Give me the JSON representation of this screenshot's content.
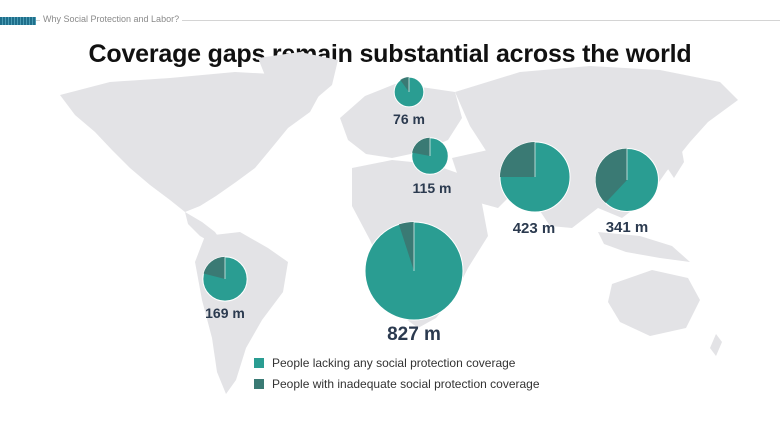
{
  "header": {
    "kicker": "Why Social Protection and Labor?"
  },
  "chart_data": {
    "type": "pie",
    "title": "Coverage gaps remain substantial across the world",
    "colors": {
      "lacking": "#2a9d92",
      "inadequate": "#3a7a74",
      "land": "#e3e3e6"
    },
    "legend": [
      {
        "key": "lacking",
        "label": "People lacking any social protection coverage"
      },
      {
        "key": "inadequate",
        "label": "People with inadequate social protection coverage"
      }
    ],
    "regions": [
      {
        "label": "76 m",
        "total_m": 76,
        "inadequate_share": 0.1
      },
      {
        "label": "115 m",
        "total_m": 115,
        "inadequate_share": 0.22
      },
      {
        "label": "423 m",
        "total_m": 423,
        "inadequate_share": 0.25
      },
      {
        "label": "341 m",
        "total_m": 341,
        "inadequate_share": 0.38
      },
      {
        "label": "169 m",
        "total_m": 169,
        "inadequate_share": 0.21
      },
      {
        "label": "827 m",
        "total_m": 827,
        "inadequate_share": 0.05
      }
    ]
  }
}
